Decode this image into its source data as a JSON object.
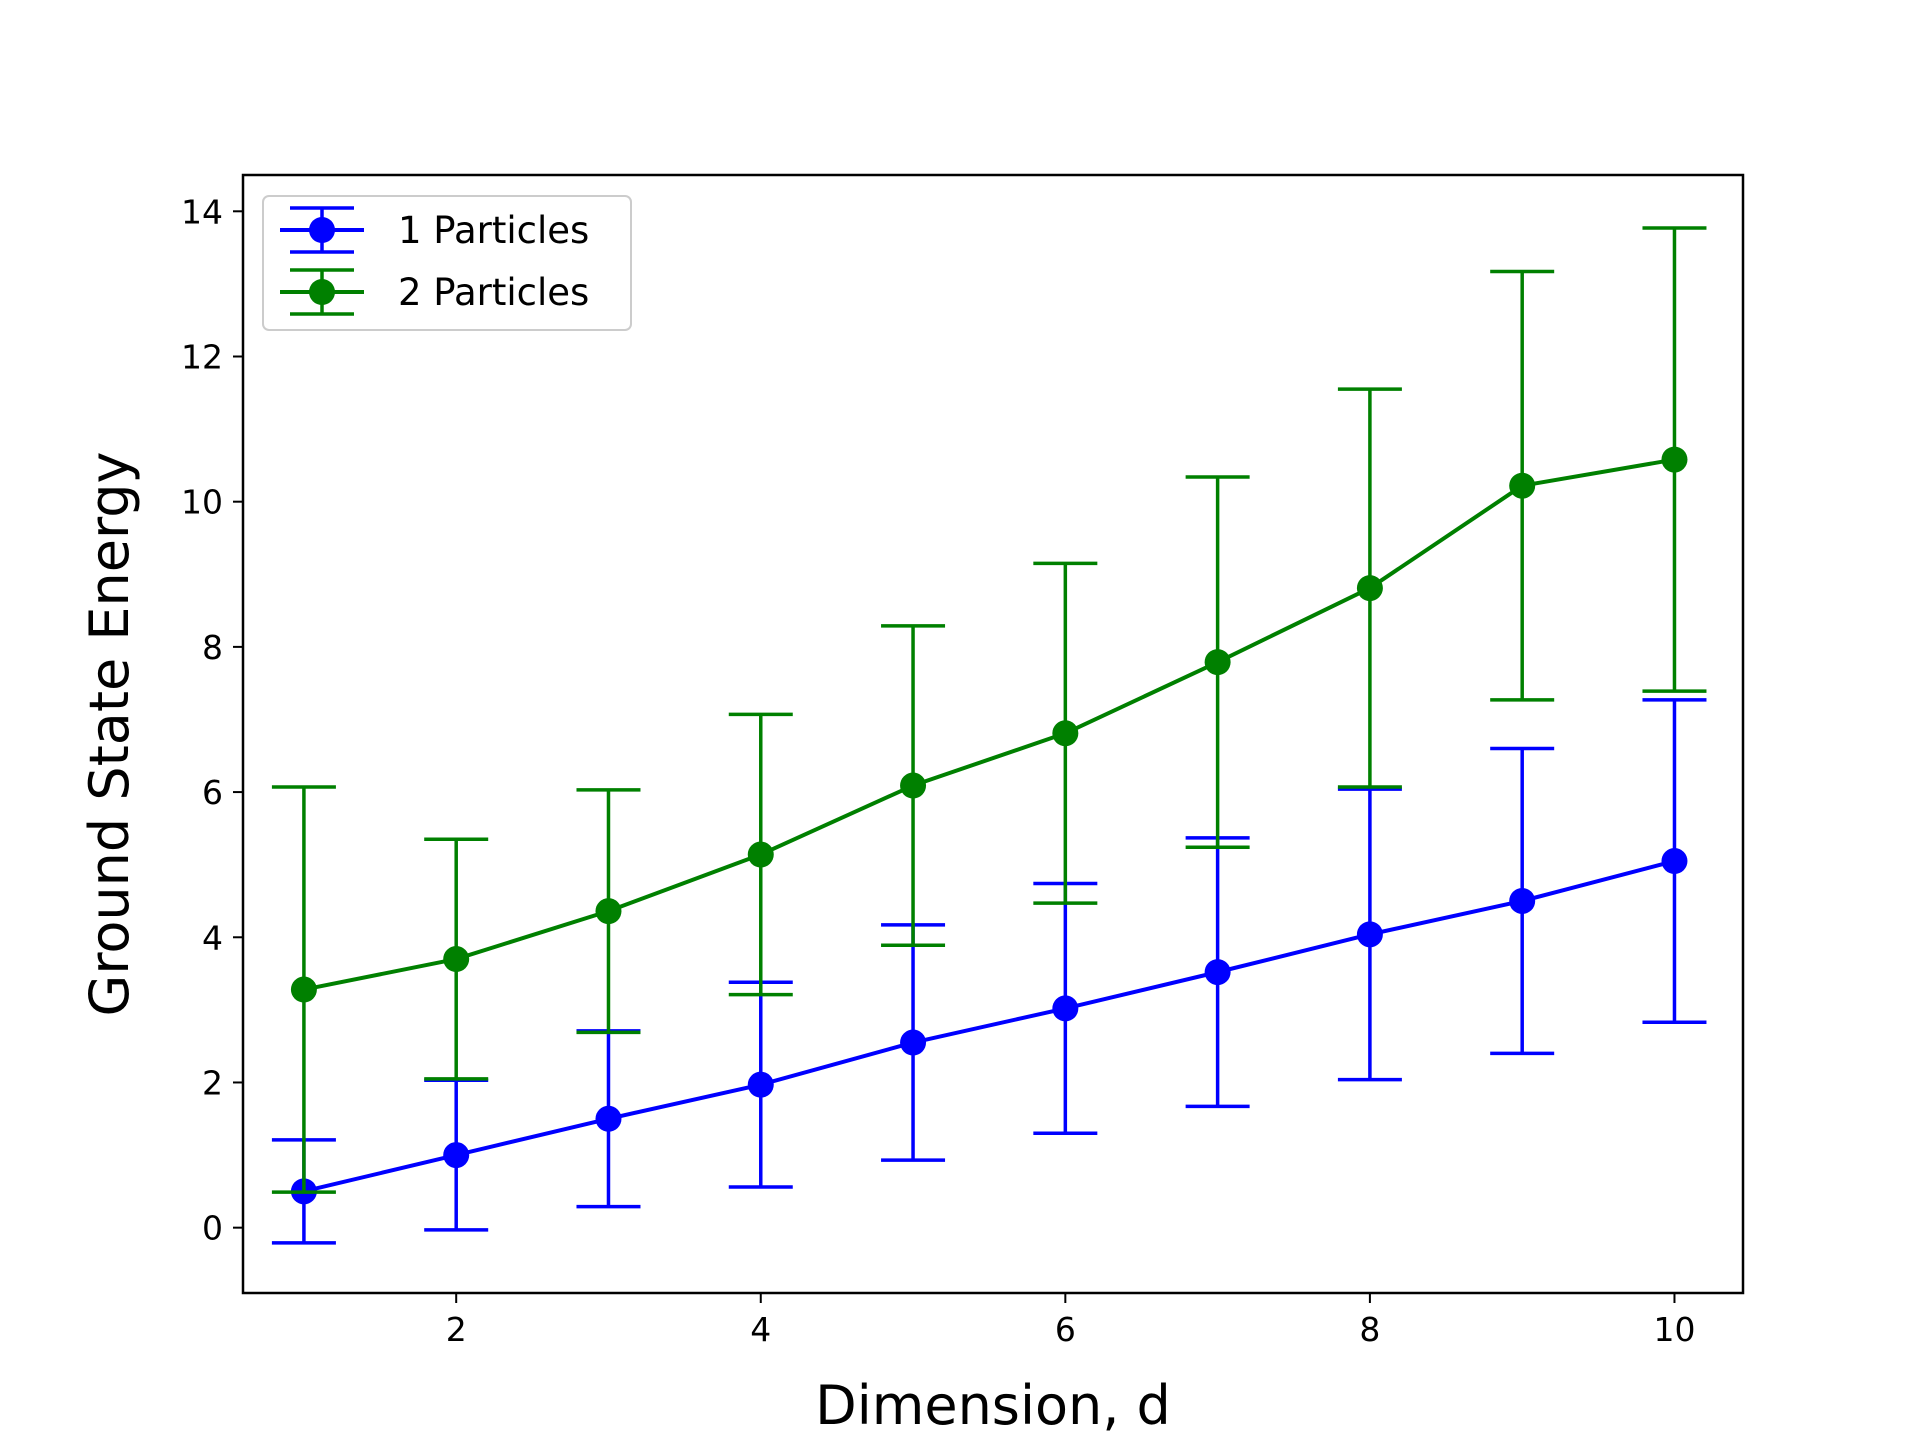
{
  "chart_data": {
    "type": "line",
    "error_bars": true,
    "xlabel": "Dimension, d",
    "ylabel": "Ground State Energy",
    "xlim": [
      0.6,
      10.45
    ],
    "ylim": [
      -0.9,
      14.5
    ],
    "xticks": [
      2,
      4,
      6,
      8,
      10
    ],
    "yticks": [
      0,
      2,
      4,
      6,
      8,
      10,
      12,
      14
    ],
    "x": [
      1,
      2,
      3,
      4,
      5,
      6,
      7,
      8,
      9,
      10
    ],
    "legend_position": "top-left",
    "grid": false,
    "series": [
      {
        "name": "1 Particles",
        "color": "#0000ff",
        "values": [
          0.5,
          1.0,
          1.5,
          1.97,
          2.55,
          3.02,
          3.52,
          4.04,
          4.5,
          5.05
        ],
        "errors": [
          0.71,
          1.03,
          1.21,
          1.41,
          1.62,
          1.72,
          1.85,
          2.0,
          2.1,
          2.22
        ]
      },
      {
        "name": "2 Particles",
        "color": "#008000",
        "values": [
          3.28,
          3.7,
          4.36,
          5.14,
          6.09,
          6.81,
          7.79,
          8.81,
          10.22,
          10.58
        ],
        "errors": [
          2.79,
          1.65,
          1.67,
          1.93,
          2.2,
          2.34,
          2.55,
          2.74,
          2.95,
          3.19
        ]
      }
    ]
  }
}
